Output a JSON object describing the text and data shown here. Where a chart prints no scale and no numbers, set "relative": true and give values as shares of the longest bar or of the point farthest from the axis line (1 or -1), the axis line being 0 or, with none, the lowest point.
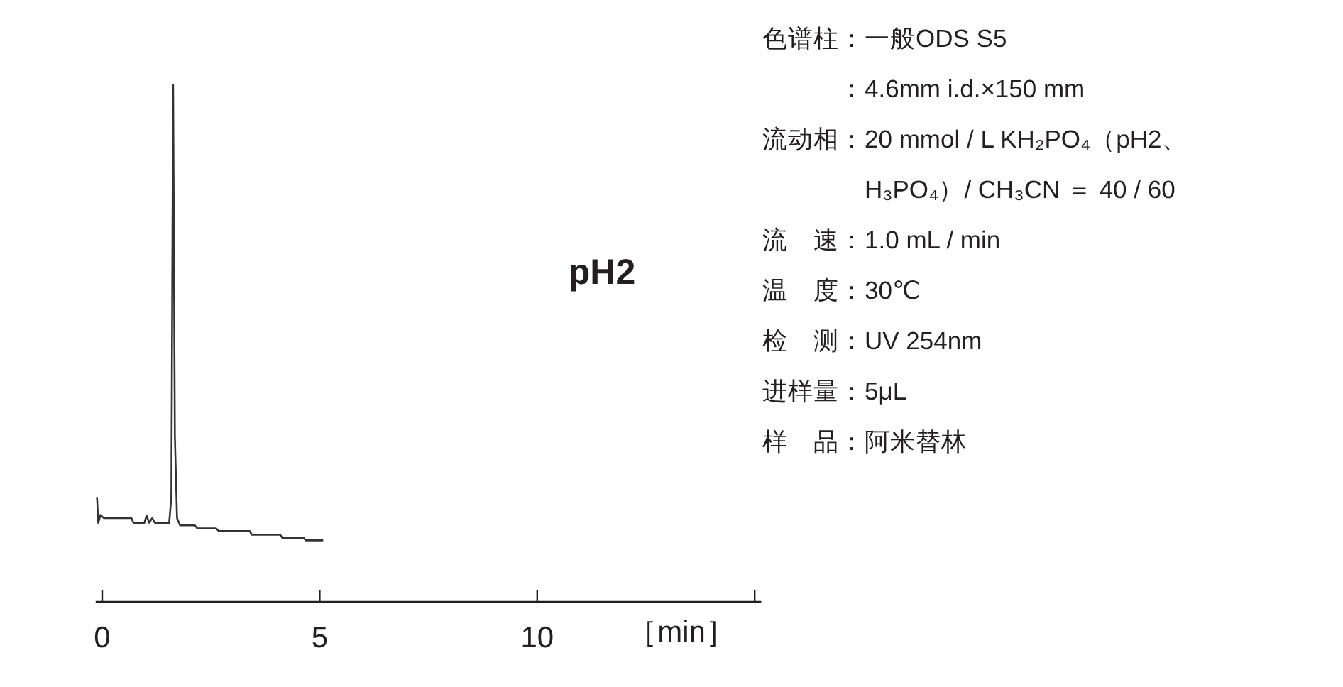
{
  "chart_data": {
    "type": "line",
    "title": "pH2",
    "xlabel": "［min］",
    "relative": true,
    "xlim": [
      -0.15,
      15.15
    ],
    "xticks": [
      0,
      5,
      10,
      {
        "value": 15,
        "label": null
      }
    ],
    "grid": false,
    "marker": "none",
    "line_style": "solid",
    "x": [
      -0.12,
      -0.09,
      -0.04,
      0.04,
      0.67,
      0.72,
      0.97,
      1.02,
      1.08,
      1.15,
      1.21,
      1.54,
      1.59,
      1.63,
      1.67,
      1.72,
      1.79,
      2.13,
      2.19,
      2.62,
      2.68,
      3.39,
      3.44,
      4.09,
      4.14,
      4.63,
      4.68,
      5.08
    ],
    "series": [
      {
        "color": "#333333",
        "values": [
          0.203,
          0.153,
          0.168,
          0.162,
          0.162,
          0.153,
          0.153,
          0.167,
          0.153,
          0.162,
          0.153,
          0.153,
          0.203,
          1,
          0.322,
          0.162,
          0.148,
          0.148,
          0.142,
          0.142,
          0.137,
          0.137,
          0.13,
          0.13,
          0.124,
          0.124,
          0.119,
          0.119
        ]
      }
    ],
    "annotations": [
      "色谱柱：一般ODS S5",
      "　　　：4.6mm i.d.×150 mm",
      "流动相：20 mmol / L KH₂PO₄（pH2、",
      "　　　　H₃PO₄）/ CH₃CN ＝ 40 / 60",
      "流　速：1.0 mL / min",
      "温　度：30℃",
      "检　测：UV 254nm",
      "进样量：5μL",
      "样　品：阿米替林"
    ]
  }
}
